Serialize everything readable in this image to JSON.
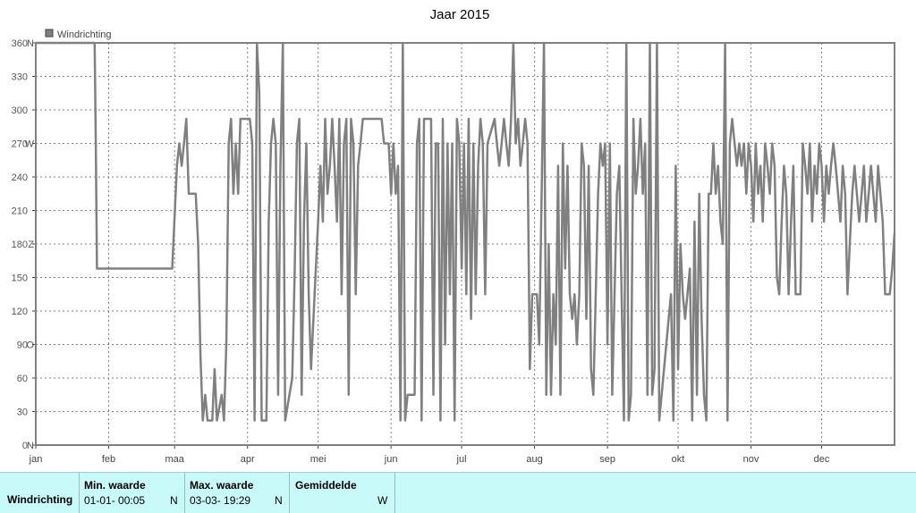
{
  "chart_data": {
    "type": "line",
    "title": "Jaar 2015",
    "legend": "Windrichting",
    "legend_position": "top-left",
    "grid": true,
    "ylim": [
      0,
      360
    ],
    "yticks": [
      0,
      30,
      60,
      90,
      120,
      150,
      180,
      210,
      240,
      270,
      300,
      330,
      360
    ],
    "ytick_labels": [
      "0",
      "30",
      "60",
      "90",
      "120",
      "150",
      "180",
      "210",
      "240",
      "270",
      "300",
      "330",
      "360"
    ],
    "compass_labels": [
      {
        "value": 0,
        "label": "N"
      },
      {
        "value": 90,
        "label": "O"
      },
      {
        "value": 180,
        "label": "Z"
      },
      {
        "value": 270,
        "label": "W"
      },
      {
        "value": 360,
        "label": "N"
      }
    ],
    "xlim": [
      1,
      366
    ],
    "xticks": [
      {
        "day": 1,
        "label": "jan"
      },
      {
        "day": 32,
        "label": "feb"
      },
      {
        "day": 60,
        "label": "maa"
      },
      {
        "day": 91,
        "label": "apr"
      },
      {
        "day": 121,
        "label": "mei"
      },
      {
        "day": 152,
        "label": "jun"
      },
      {
        "day": 182,
        "label": "jul"
      },
      {
        "day": 213,
        "label": "aug"
      },
      {
        "day": 244,
        "label": "sep"
      },
      {
        "day": 274,
        "label": "okt"
      },
      {
        "day": 305,
        "label": "nov"
      },
      {
        "day": 335,
        "label": "dec"
      }
    ],
    "series": [
      {
        "name": "Windrichting",
        "color": "#808080",
        "points": [
          [
            1,
            360
          ],
          [
            26,
            360
          ],
          [
            26.5,
            270
          ],
          [
            27,
            158
          ],
          [
            59,
            158
          ],
          [
            61,
            250
          ],
          [
            62,
            270
          ],
          [
            63,
            250
          ],
          [
            64,
            270
          ],
          [
            65,
            292
          ],
          [
            66,
            225
          ],
          [
            69,
            225
          ],
          [
            70,
            180
          ],
          [
            71,
            80
          ],
          [
            72,
            22
          ],
          [
            73,
            45
          ],
          [
            74,
            22
          ],
          [
            76,
            22
          ],
          [
            77,
            68
          ],
          [
            78,
            22
          ],
          [
            80,
            45
          ],
          [
            81,
            22
          ],
          [
            82,
            90
          ],
          [
            83,
            270
          ],
          [
            84,
            292
          ],
          [
            85,
            225
          ],
          [
            86,
            270
          ],
          [
            87,
            225
          ],
          [
            88,
            292
          ],
          [
            92,
            292
          ],
          [
            93,
            270
          ],
          [
            94,
            22
          ],
          [
            95,
            360
          ],
          [
            96,
            315
          ],
          [
            97,
            22
          ],
          [
            99,
            22
          ],
          [
            100,
            200
          ],
          [
            101,
            270
          ],
          [
            102,
            292
          ],
          [
            103,
            270
          ],
          [
            104,
            45
          ],
          [
            105,
            250
          ],
          [
            106,
            360
          ],
          [
            107,
            22
          ],
          [
            110,
            60
          ],
          [
            111,
            150
          ],
          [
            112,
            270
          ],
          [
            113,
            292
          ],
          [
            114,
            45
          ],
          [
            115,
            200
          ],
          [
            116,
            270
          ],
          [
            117,
            135
          ],
          [
            118,
            68
          ],
          [
            121,
            200
          ],
          [
            122,
            250
          ],
          [
            123,
            200
          ],
          [
            124,
            292
          ],
          [
            125,
            225
          ],
          [
            126,
            250
          ],
          [
            127,
            292
          ],
          [
            128,
            250
          ],
          [
            129,
            200
          ],
          [
            130,
            292
          ],
          [
            131,
            135
          ],
          [
            132,
            270
          ],
          [
            133,
            292
          ],
          [
            134,
            45
          ],
          [
            135,
            292
          ],
          [
            136,
            270
          ],
          [
            137,
            135
          ],
          [
            138,
            250
          ],
          [
            139,
            270
          ],
          [
            140,
            292
          ],
          [
            148,
            292
          ],
          [
            149,
            270
          ],
          [
            151,
            270
          ],
          [
            152,
            225
          ],
          [
            153,
            270
          ],
          [
            154,
            225
          ],
          [
            155,
            250
          ],
          [
            156,
            22
          ],
          [
            157,
            360
          ],
          [
            158,
            22
          ],
          [
            159,
            45
          ],
          [
            162,
            45
          ],
          [
            163,
            270
          ],
          [
            164,
            292
          ],
          [
            165,
            22
          ],
          [
            166,
            292
          ],
          [
            169,
            292
          ],
          [
            170,
            45
          ],
          [
            171,
            270
          ],
          [
            172,
            270
          ],
          [
            173,
            22
          ],
          [
            174,
            292
          ],
          [
            175,
            90
          ],
          [
            176,
            270
          ],
          [
            177,
            135
          ],
          [
            178,
            270
          ],
          [
            179,
            22
          ],
          [
            180,
            292
          ],
          [
            181,
            270
          ],
          [
            182,
            158
          ],
          [
            183,
            270
          ],
          [
            184,
            135
          ],
          [
            185,
            292
          ],
          [
            186,
            113
          ],
          [
            187,
            270
          ],
          [
            188,
            135
          ],
          [
            189,
            250
          ],
          [
            190,
            292
          ],
          [
            191,
            270
          ],
          [
            192,
            135
          ],
          [
            193,
            270
          ],
          [
            196,
            292
          ],
          [
            197,
            270
          ],
          [
            198,
            250
          ],
          [
            199,
            270
          ],
          [
            200,
            292
          ],
          [
            201,
            270
          ],
          [
            202,
            250
          ],
          [
            203,
            292
          ],
          [
            204,
            360
          ],
          [
            205,
            270
          ],
          [
            206,
            292
          ],
          [
            207,
            250
          ],
          [
            208,
            270
          ],
          [
            209,
            292
          ],
          [
            210,
            270
          ],
          [
            211,
            68
          ],
          [
            212,
            135
          ],
          [
            214,
            135
          ],
          [
            215,
            90
          ],
          [
            216,
            225
          ],
          [
            217,
            360
          ],
          [
            218,
            45
          ],
          [
            219,
            180
          ],
          [
            220,
            45
          ],
          [
            221,
            135
          ],
          [
            222,
            90
          ],
          [
            223,
            250
          ],
          [
            224,
            45
          ],
          [
            225,
            270
          ],
          [
            226,
            158
          ],
          [
            227,
            250
          ],
          [
            228,
            135
          ],
          [
            229,
            113
          ],
          [
            230,
            135
          ],
          [
            231,
            90
          ],
          [
            232,
            135
          ],
          [
            233,
            270
          ],
          [
            234,
            250
          ],
          [
            235,
            113
          ],
          [
            236,
            250
          ],
          [
            237,
            68
          ],
          [
            238,
            45
          ],
          [
            239,
            135
          ],
          [
            240,
            225
          ],
          [
            241,
            270
          ],
          [
            242,
            250
          ],
          [
            243,
            270
          ],
          [
            244,
            90
          ],
          [
            245,
            270
          ],
          [
            246,
            45
          ],
          [
            247,
            135
          ],
          [
            248,
            225
          ],
          [
            249,
            250
          ],
          [
            250,
            135
          ],
          [
            251,
            22
          ],
          [
            252,
            360
          ],
          [
            253,
            22
          ],
          [
            254,
            45
          ],
          [
            255,
            292
          ],
          [
            256,
            225
          ],
          [
            257,
            250
          ],
          [
            258,
            292
          ],
          [
            259,
            225
          ],
          [
            260,
            270
          ],
          [
            261,
            45
          ],
          [
            262,
            360
          ],
          [
            263,
            45
          ],
          [
            264,
            68
          ],
          [
            265,
            360
          ],
          [
            266,
            22
          ],
          [
            270,
            113
          ],
          [
            271,
            135
          ],
          [
            272,
            22
          ],
          [
            273,
            250
          ],
          [
            274,
            68
          ],
          [
            275,
            180
          ],
          [
            276,
            135
          ],
          [
            277,
            113
          ],
          [
            279,
            158
          ],
          [
            280,
            22
          ],
          [
            281,
            200
          ],
          [
            282,
            45
          ],
          [
            283,
            225
          ],
          [
            284,
            113
          ],
          [
            285,
            45
          ],
          [
            286,
            22
          ],
          [
            287,
            225
          ],
          [
            288,
            225
          ],
          [
            289,
            270
          ],
          [
            290,
            225
          ],
          [
            291,
            250
          ],
          [
            292,
            200
          ],
          [
            293,
            180
          ],
          [
            294,
            360
          ],
          [
            295,
            22
          ],
          [
            296,
            270
          ],
          [
            297,
            292
          ],
          [
            298,
            270
          ],
          [
            299,
            250
          ],
          [
            300,
            270
          ],
          [
            301,
            250
          ],
          [
            302,
            270
          ],
          [
            303,
            225
          ],
          [
            304,
            270
          ],
          [
            305,
            250
          ],
          [
            306,
            200
          ],
          [
            307,
            270
          ],
          [
            308,
            225
          ],
          [
            309,
            250
          ],
          [
            310,
            200
          ],
          [
            311,
            270
          ],
          [
            312,
            250
          ],
          [
            313,
            225
          ],
          [
            314,
            270
          ],
          [
            315,
            250
          ],
          [
            316,
            150
          ],
          [
            317,
            135
          ],
          [
            318,
            200
          ],
          [
            319,
            250
          ],
          [
            320,
            225
          ],
          [
            321,
            135
          ],
          [
            322,
            200
          ],
          [
            323,
            250
          ],
          [
            324,
            135
          ],
          [
            326,
            135
          ],
          [
            327,
            270
          ],
          [
            328,
            250
          ],
          [
            329,
            225
          ],
          [
            330,
            270
          ],
          [
            331,
            200
          ],
          [
            332,
            250
          ],
          [
            333,
            225
          ],
          [
            334,
            270
          ],
          [
            335,
            250
          ],
          [
            336,
            200
          ],
          [
            337,
            250
          ],
          [
            338,
            225
          ],
          [
            339,
            250
          ],
          [
            340,
            270
          ],
          [
            341,
            250
          ],
          [
            342,
            225
          ],
          [
            343,
            200
          ],
          [
            344,
            250
          ],
          [
            345,
            225
          ],
          [
            346,
            135
          ],
          [
            347,
            180
          ],
          [
            348,
            225
          ],
          [
            349,
            250
          ],
          [
            350,
            225
          ],
          [
            351,
            200
          ],
          [
            352,
            225
          ],
          [
            353,
            250
          ],
          [
            354,
            200
          ],
          [
            355,
            225
          ],
          [
            356,
            250
          ],
          [
            357,
            225
          ],
          [
            358,
            200
          ],
          [
            359,
            250
          ],
          [
            360,
            225
          ],
          [
            361,
            200
          ],
          [
            362,
            135
          ],
          [
            364,
            135
          ],
          [
            365,
            158
          ],
          [
            366,
            190
          ]
        ]
      }
    ]
  },
  "footer": {
    "row_label": "Windrichting",
    "min": {
      "header": "Min. waarde",
      "date": "01-01-  00:05",
      "dir": "N"
    },
    "max": {
      "header": "Max. waarde",
      "date": "03-03-  19:29",
      "dir": "N"
    },
    "avg": {
      "header": "Gemiddelde",
      "dir": "W"
    }
  }
}
